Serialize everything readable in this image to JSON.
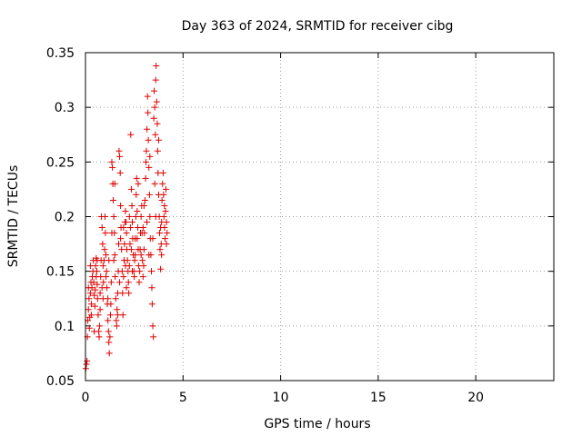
{
  "chart_data": {
    "type": "scatter",
    "title": "Day 363 of 2024, SRMTID for receiver cibg",
    "xlabel": "GPS time / hours",
    "ylabel": "SRMTID / TECUs",
    "xlim": [
      0,
      24
    ],
    "ylim": [
      0.05,
      0.35
    ],
    "xticks": [
      0,
      5,
      10,
      15,
      20
    ],
    "xtick_labels": [
      "0",
      "5",
      "10",
      "15",
      "20"
    ],
    "yticks": [
      0.05,
      0.1,
      0.15,
      0.2,
      0.25,
      0.3,
      0.35
    ],
    "ytick_labels": [
      "0.05",
      "0.1",
      "0.15",
      "0.2",
      "0.25",
      "0.3",
      "0.35"
    ],
    "grid": true,
    "marker": "+",
    "color": "#e00000",
    "series": [
      {
        "name": "cibg",
        "points": [
          [
            0.02,
            0.061
          ],
          [
            0.05,
            0.065
          ],
          [
            0.08,
            0.068
          ],
          [
            0.1,
            0.09
          ],
          [
            0.12,
            0.105
          ],
          [
            0.15,
            0.115
          ],
          [
            0.18,
            0.125
          ],
          [
            0.2,
            0.098
          ],
          [
            0.22,
            0.108
          ],
          [
            0.25,
            0.13
          ],
          [
            0.28,
            0.14
          ],
          [
            0.3,
            0.12
          ],
          [
            0.33,
            0.135
          ],
          [
            0.35,
            0.145
          ],
          [
            0.38,
            0.15
          ],
          [
            0.4,
            0.16
          ],
          [
            0.42,
            0.14
          ],
          [
            0.45,
            0.128
          ],
          [
            0.48,
            0.118
          ],
          [
            0.5,
            0.133
          ],
          [
            0.52,
            0.155
          ],
          [
            0.55,
            0.162
          ],
          [
            0.58,
            0.15
          ],
          [
            0.6,
            0.138
          ],
          [
            0.62,
            0.125
          ],
          [
            0.65,
            0.11
          ],
          [
            0.68,
            0.095
          ],
          [
            0.7,
            0.09
          ],
          [
            0.72,
            0.1
          ],
          [
            0.75,
            0.13
          ],
          [
            0.78,
            0.145
          ],
          [
            0.8,
            0.16
          ],
          [
            0.82,
            0.2
          ],
          [
            0.85,
            0.19
          ],
          [
            0.88,
            0.175
          ],
          [
            0.9,
            0.155
          ],
          [
            0.92,
            0.14
          ],
          [
            0.95,
            0.16
          ],
          [
            0.98,
            0.17
          ],
          [
            1.0,
            0.2
          ],
          [
            1.02,
            0.185
          ],
          [
            1.05,
            0.165
          ],
          [
            1.08,
            0.15
          ],
          [
            1.1,
            0.135
          ],
          [
            1.12,
            0.12
          ],
          [
            1.15,
            0.105
          ],
          [
            1.18,
            0.095
          ],
          [
            1.2,
            0.085
          ],
          [
            1.22,
            0.075
          ],
          [
            1.25,
            0.09
          ],
          [
            1.28,
            0.11
          ],
          [
            1.3,
            0.12
          ],
          [
            1.32,
            0.14
          ],
          [
            1.35,
            0.25
          ],
          [
            1.38,
            0.245
          ],
          [
            1.4,
            0.23
          ],
          [
            1.42,
            0.215
          ],
          [
            1.45,
            0.2
          ],
          [
            1.48,
            0.185
          ],
          [
            1.5,
            0.165
          ],
          [
            1.52,
            0.145
          ],
          [
            1.55,
            0.125
          ],
          [
            1.58,
            0.105
          ],
          [
            1.6,
            0.1
          ],
          [
            1.62,
            0.115
          ],
          [
            1.65,
            0.13
          ],
          [
            1.68,
            0.15
          ],
          [
            1.7,
            0.175
          ],
          [
            1.72,
            0.26
          ],
          [
            1.75,
            0.255
          ],
          [
            1.78,
            0.24
          ],
          [
            1.8,
            0.21
          ],
          [
            1.82,
            0.19
          ],
          [
            1.85,
            0.17
          ],
          [
            1.88,
            0.15
          ],
          [
            1.9,
            0.13
          ],
          [
            1.92,
            0.11
          ],
          [
            1.95,
            0.145
          ],
          [
            1.98,
            0.16
          ],
          [
            2.0,
            0.175
          ],
          [
            2.02,
            0.195
          ],
          [
            2.05,
            0.205
          ],
          [
            2.08,
            0.195
          ],
          [
            2.1,
            0.185
          ],
          [
            2.12,
            0.17
          ],
          [
            2.15,
            0.16
          ],
          [
            2.18,
            0.15
          ],
          [
            2.2,
            0.14
          ],
          [
            2.22,
            0.13
          ],
          [
            2.25,
            0.155
          ],
          [
            2.28,
            0.175
          ],
          [
            2.3,
            0.19
          ],
          [
            2.32,
            0.275
          ],
          [
            2.35,
            0.225
          ],
          [
            2.38,
            0.21
          ],
          [
            2.4,
            0.195
          ],
          [
            2.42,
            0.18
          ],
          [
            2.45,
            0.165
          ],
          [
            2.48,
            0.15
          ],
          [
            2.5,
            0.145
          ],
          [
            2.52,
            0.16
          ],
          [
            2.55,
            0.18
          ],
          [
            2.58,
            0.2
          ],
          [
            2.6,
            0.22
          ],
          [
            2.62,
            0.235
          ],
          [
            2.65,
            0.205
          ],
          [
            2.68,
            0.19
          ],
          [
            2.7,
            0.17
          ],
          [
            2.72,
            0.155
          ],
          [
            2.75,
            0.14
          ],
          [
            2.78,
            0.15
          ],
          [
            2.8,
            0.17
          ],
          [
            2.82,
            0.185
          ],
          [
            2.85,
            0.2
          ],
          [
            2.88,
            0.21
          ],
          [
            2.9,
            0.185
          ],
          [
            2.92,
            0.16
          ],
          [
            2.95,
            0.145
          ],
          [
            2.98,
            0.155
          ],
          [
            3.0,
            0.17
          ],
          [
            3.02,
            0.185
          ],
          [
            3.05,
            0.215
          ],
          [
            3.08,
            0.235
          ],
          [
            3.1,
            0.25
          ],
          [
            3.12,
            0.26
          ],
          [
            3.15,
            0.28
          ],
          [
            3.18,
            0.31
          ],
          [
            3.2,
            0.295
          ],
          [
            3.22,
            0.27
          ],
          [
            3.25,
            0.245
          ],
          [
            3.28,
            0.22
          ],
          [
            3.3,
            0.2
          ],
          [
            3.32,
            0.18
          ],
          [
            3.35,
            0.165
          ],
          [
            3.38,
            0.15
          ],
          [
            3.4,
            0.135
          ],
          [
            3.42,
            0.12
          ],
          [
            3.45,
            0.1
          ],
          [
            3.48,
            0.09
          ],
          [
            3.5,
            0.29
          ],
          [
            3.52,
            0.315
          ],
          [
            3.55,
            0.3
          ],
          [
            3.58,
            0.275
          ],
          [
            3.6,
            0.325
          ],
          [
            3.62,
            0.338
          ],
          [
            3.65,
            0.305
          ],
          [
            3.68,
            0.285
          ],
          [
            3.7,
            0.26
          ],
          [
            3.72,
            0.24
          ],
          [
            3.75,
            0.22
          ],
          [
            3.78,
            0.2
          ],
          [
            3.8,
            0.185
          ],
          [
            3.82,
            0.17
          ],
          [
            3.85,
            0.152
          ],
          [
            3.88,
            0.175
          ],
          [
            3.9,
            0.195
          ],
          [
            3.92,
            0.215
          ],
          [
            3.95,
            0.23
          ],
          [
            3.98,
            0.24
          ],
          [
            4.0,
            0.22
          ],
          [
            4.02,
            0.2
          ],
          [
            4.05,
            0.19
          ],
          [
            4.08,
            0.18
          ],
          [
            4.1,
            0.205
          ],
          [
            4.12,
            0.225
          ],
          [
            4.15,
            0.195
          ],
          [
            4.18,
            0.185
          ],
          [
            0.3,
            0.11
          ],
          [
            0.6,
            0.16
          ],
          [
            0.9,
            0.125
          ],
          [
            1.2,
            0.16
          ],
          [
            1.5,
            0.23
          ],
          [
            1.8,
            0.18
          ],
          [
            2.1,
            0.135
          ],
          [
            2.4,
            0.15
          ],
          [
            2.7,
            0.23
          ],
          [
            3.0,
            0.21
          ],
          [
            3.3,
            0.255
          ],
          [
            3.6,
            0.2
          ],
          [
            3.9,
            0.165
          ],
          [
            0.45,
            0.095
          ],
          [
            1.05,
            0.145
          ],
          [
            1.65,
            0.11
          ],
          [
            2.25,
            0.2
          ],
          [
            2.85,
            0.165
          ],
          [
            3.45,
            0.18
          ],
          [
            4.05,
            0.21
          ],
          [
            0.15,
            0.135
          ],
          [
            0.75,
            0.115
          ],
          [
            1.35,
            0.185
          ],
          [
            1.95,
            0.19
          ],
          [
            2.55,
            0.165
          ],
          [
            3.15,
            0.195
          ],
          [
            3.75,
            0.27
          ],
          [
            0.55,
            0.145
          ],
          [
            1.15,
            0.125
          ],
          [
            1.75,
            0.14
          ],
          [
            2.35,
            0.17
          ],
          [
            2.95,
            0.19
          ],
          [
            3.55,
            0.23
          ],
          [
            4.15,
            0.175
          ],
          [
            0.25,
            0.155
          ],
          [
            0.85,
            0.135
          ],
          [
            1.45,
            0.16
          ],
          [
            2.05,
            0.155
          ],
          [
            2.65,
            0.18
          ],
          [
            3.25,
            0.165
          ],
          [
            3.85,
            0.19
          ]
        ]
      }
    ]
  }
}
